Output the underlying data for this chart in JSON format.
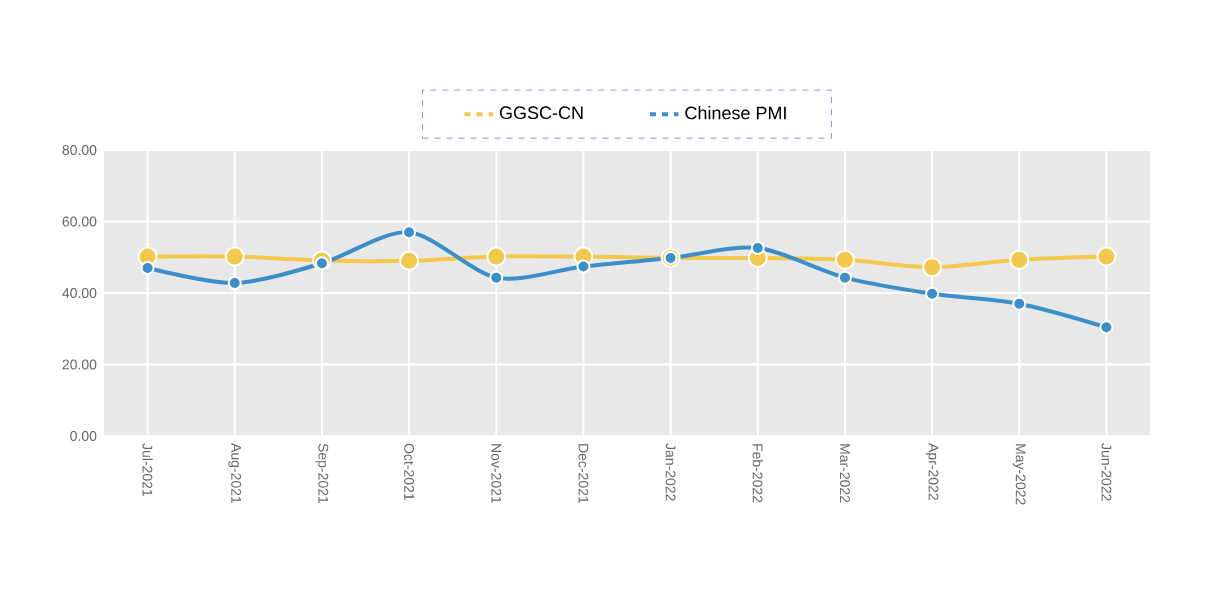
{
  "chart_data": {
    "type": "line",
    "categories": [
      "Jul-2021",
      "Aug-2021",
      "Sep-2021",
      "Oct-2021",
      "Nov-2021",
      "Dec-2021",
      "Jan-2022",
      "Feb-2022",
      "Mar-2022",
      "Apr-2022",
      "May-2022",
      "Jun-2022"
    ],
    "series": [
      {
        "name": "GGSC-CN",
        "color": "#f2c94c",
        "values": [
          50.2,
          50.2,
          49.1,
          49,
          50.2,
          50.2,
          49.8,
          49.8,
          49.3,
          47.2,
          49.3,
          50.2
        ]
      },
      {
        "name": "Chinese PMI",
        "color": "#3a8fc8",
        "values": [
          47,
          42.8,
          48.3,
          57,
          44.3,
          47.4,
          49.8,
          52.6,
          44.3,
          39.8,
          37,
          30.4
        ]
      }
    ],
    "ylim": [
      0,
      80
    ],
    "yticks": [
      {
        "value": 0,
        "label": "0.00"
      },
      {
        "value": 20,
        "label": "20.00"
      },
      {
        "value": 40,
        "label": "40.00"
      },
      {
        "value": 60,
        "label": "60.00"
      },
      {
        "value": 80,
        "label": "80.00"
      }
    ],
    "grid": true,
    "legend": "top",
    "marker": "circle"
  }
}
